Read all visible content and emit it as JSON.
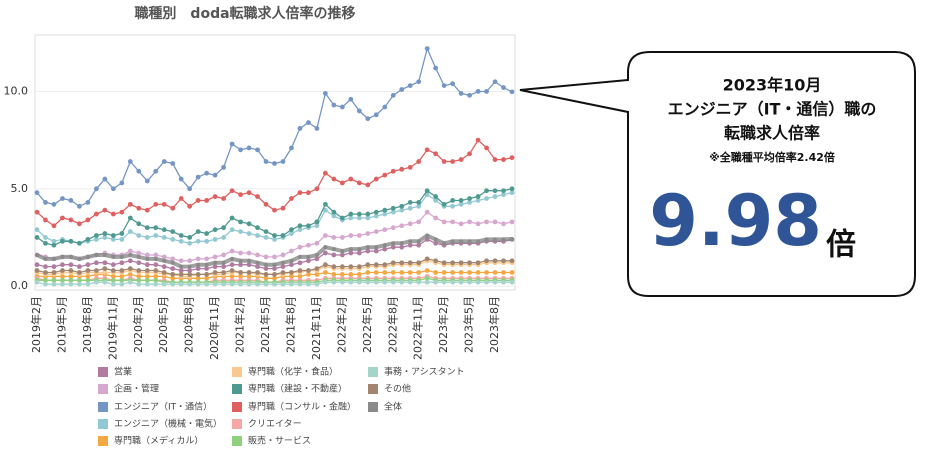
{
  "chart_data": {
    "type": "line",
    "title": "職種別　doda転職求人倍率の推移",
    "categories": [
      "2019年2月",
      null,
      null,
      "2019年5月",
      null,
      null,
      "2019年8月",
      null,
      null,
      "2019年11月",
      null,
      null,
      "2020年2月",
      null,
      null,
      "2020年5月",
      null,
      null,
      "2020年8月",
      null,
      null,
      "2020年11月",
      null,
      null,
      "2021年2月",
      null,
      null,
      "2021年5月",
      null,
      null,
      "2021年8月",
      null,
      null,
      "2021年11月",
      null,
      null,
      "2022年2月",
      null,
      null,
      "2022年5月",
      null,
      null,
      "2022年8月",
      null,
      null,
      "2022年11月",
      null,
      null,
      "2023年2月",
      null,
      null,
      "2023年5月",
      null,
      null,
      "2023年8月",
      null,
      null
    ],
    "ylim": [
      -0.2,
      12.9
    ],
    "yticks": [
      {
        "value": 0,
        "label": "0.0"
      },
      {
        "value": 5,
        "label": "5.0"
      },
      {
        "value": 10,
        "label": "10.0"
      }
    ],
    "grid": true,
    "series": [
      {
        "name": "営業",
        "color": "#b07aa1",
        "values": [
          1.1,
          1.0,
          1.0,
          1.1,
          1.1,
          1.0,
          1.1,
          1.2,
          1.2,
          1.1,
          1.2,
          1.3,
          1.2,
          1.1,
          1.1,
          1.0,
          0.9,
          0.8,
          0.8,
          0.9,
          0.9,
          1.0,
          1.0,
          1.1,
          1.1,
          1.1,
          1.0,
          0.9,
          0.9,
          1.0,
          1.1,
          1.2,
          1.3,
          1.4,
          1.7,
          1.6,
          1.6,
          1.7,
          1.7,
          1.8,
          1.8,
          1.9,
          2.0,
          2.0,
          2.1,
          2.1,
          2.4,
          2.2,
          2.1,
          2.2,
          2.2,
          2.2,
          2.2,
          2.3,
          2.3,
          2.3,
          2.4
        ]
      },
      {
        "name": "企画・管理",
        "color": "#d7a8cf",
        "values": [
          1.6,
          1.5,
          1.4,
          1.5,
          1.5,
          1.4,
          1.5,
          1.6,
          1.7,
          1.6,
          1.6,
          1.8,
          1.7,
          1.6,
          1.6,
          1.5,
          1.4,
          1.3,
          1.3,
          1.4,
          1.4,
          1.5,
          1.6,
          1.8,
          1.7,
          1.7,
          1.6,
          1.5,
          1.5,
          1.6,
          1.8,
          2.0,
          2.1,
          2.2,
          2.6,
          2.5,
          2.5,
          2.6,
          2.6,
          2.7,
          2.8,
          2.9,
          3.0,
          3.1,
          3.2,
          3.3,
          3.8,
          3.5,
          3.3,
          3.3,
          3.2,
          3.3,
          3.2,
          3.3,
          3.3,
          3.2,
          3.3
        ]
      },
      {
        "name": "エンジニア（IT・通信）",
        "color": "#7596c4",
        "values": [
          4.8,
          4.3,
          4.2,
          4.5,
          4.4,
          4.1,
          4.3,
          5.0,
          5.5,
          5.0,
          5.3,
          6.4,
          5.9,
          5.4,
          5.9,
          6.4,
          6.3,
          5.5,
          5.0,
          5.6,
          5.8,
          5.7,
          6.1,
          7.3,
          7.0,
          7.1,
          7.0,
          6.4,
          6.3,
          6.4,
          7.1,
          8.1,
          8.4,
          8.1,
          9.9,
          9.3,
          9.2,
          9.6,
          9.0,
          8.6,
          8.8,
          9.2,
          9.8,
          10.1,
          10.3,
          10.5,
          12.2,
          11.2,
          10.3,
          10.4,
          9.9,
          9.8,
          10.0,
          10.0,
          10.5,
          10.2,
          9.98
        ]
      },
      {
        "name": "エンジニア（機械・電気）",
        "color": "#93c9d3",
        "values": [
          2.9,
          2.5,
          2.3,
          2.4,
          2.3,
          2.2,
          2.3,
          2.4,
          2.5,
          2.4,
          2.4,
          2.8,
          2.6,
          2.5,
          2.6,
          2.5,
          2.4,
          2.3,
          2.2,
          2.3,
          2.3,
          2.4,
          2.5,
          2.9,
          2.8,
          2.7,
          2.6,
          2.5,
          2.4,
          2.5,
          2.7,
          2.9,
          3.0,
          3.1,
          3.9,
          3.6,
          3.4,
          3.5,
          3.5,
          3.5,
          3.6,
          3.7,
          3.8,
          3.9,
          4.0,
          4.1,
          4.7,
          4.4,
          4.1,
          4.1,
          4.2,
          4.3,
          4.4,
          4.5,
          4.6,
          4.7,
          4.8
        ]
      },
      {
        "name": "専門職（メディカル）",
        "color": "#f5a742",
        "values": [
          0.5,
          0.5,
          0.5,
          0.5,
          0.5,
          0.5,
          0.5,
          0.6,
          0.6,
          0.5,
          0.5,
          0.6,
          0.5,
          0.5,
          0.5,
          0.5,
          0.4,
          0.4,
          0.4,
          0.4,
          0.4,
          0.5,
          0.5,
          0.5,
          0.5,
          0.5,
          0.5,
          0.4,
          0.4,
          0.5,
          0.5,
          0.5,
          0.6,
          0.6,
          0.7,
          0.6,
          0.6,
          0.6,
          0.6,
          0.7,
          0.7,
          0.7,
          0.7,
          0.7,
          0.7,
          0.7,
          0.8,
          0.7,
          0.7,
          0.7,
          0.7,
          0.7,
          0.7,
          0.7,
          0.7,
          0.7,
          0.7
        ]
      },
      {
        "name": "専門職（化学・食品）",
        "color": "#f8c98e",
        "values": [
          0.7,
          0.6,
          0.6,
          0.7,
          0.7,
          0.6,
          0.7,
          0.7,
          0.7,
          0.7,
          0.7,
          0.8,
          0.7,
          0.7,
          0.7,
          0.6,
          0.6,
          0.5,
          0.5,
          0.6,
          0.6,
          0.6,
          0.6,
          0.7,
          0.7,
          0.7,
          0.6,
          0.6,
          0.6,
          0.6,
          0.7,
          0.7,
          0.8,
          0.8,
          1.0,
          0.9,
          0.9,
          0.9,
          0.9,
          1.0,
          1.0,
          1.0,
          1.1,
          1.1,
          1.1,
          1.1,
          1.3,
          1.2,
          1.1,
          1.1,
          1.1,
          1.1,
          1.1,
          1.2,
          1.2,
          1.2,
          1.2
        ]
      },
      {
        "name": "専門職（建設・不動産）",
        "color": "#4f9a90",
        "values": [
          2.5,
          2.2,
          2.1,
          2.3,
          2.3,
          2.2,
          2.4,
          2.6,
          2.7,
          2.6,
          2.7,
          3.5,
          3.2,
          3.0,
          3.0,
          2.9,
          2.8,
          2.6,
          2.5,
          2.8,
          2.7,
          2.9,
          3.0,
          3.5,
          3.3,
          3.2,
          3.0,
          2.8,
          2.6,
          2.6,
          2.9,
          3.1,
          3.1,
          3.3,
          4.2,
          3.8,
          3.5,
          3.7,
          3.7,
          3.7,
          3.8,
          3.9,
          4.0,
          4.1,
          4.3,
          4.3,
          4.9,
          4.6,
          4.2,
          4.4,
          4.4,
          4.5,
          4.6,
          4.9,
          4.9,
          4.9,
          5.0
        ]
      },
      {
        "name": "専門職（コンサル・金融）",
        "color": "#e06060",
        "values": [
          3.8,
          3.4,
          3.1,
          3.5,
          3.4,
          3.2,
          3.4,
          3.7,
          3.9,
          3.7,
          3.8,
          4.2,
          4.0,
          3.9,
          4.2,
          4.2,
          4.0,
          4.5,
          4.1,
          4.4,
          4.4,
          4.6,
          4.5,
          4.9,
          4.7,
          4.8,
          4.6,
          4.2,
          3.9,
          4.0,
          4.5,
          4.8,
          4.8,
          5.0,
          5.8,
          5.5,
          5.3,
          5.5,
          5.3,
          5.2,
          5.5,
          5.7,
          5.9,
          6.0,
          6.1,
          6.4,
          7.0,
          6.8,
          6.4,
          6.4,
          6.5,
          6.8,
          7.5,
          7.1,
          6.5,
          6.5,
          6.6
        ]
      },
      {
        "name": "クリエイター",
        "color": "#f4a7a5",
        "values": [
          0.4,
          0.3,
          0.3,
          0.3,
          0.3,
          0.3,
          0.3,
          0.4,
          0.4,
          0.3,
          0.3,
          0.4,
          0.3,
          0.3,
          0.3,
          0.3,
          0.2,
          0.2,
          0.2,
          0.2,
          0.2,
          0.3,
          0.3,
          0.3,
          0.3,
          0.3,
          0.3,
          0.2,
          0.2,
          0.3,
          0.3,
          0.3,
          0.3,
          0.3,
          0.4,
          0.4,
          0.4,
          0.4,
          0.4,
          0.4,
          0.4,
          0.4,
          0.4,
          0.4,
          0.4,
          0.4,
          0.5,
          0.4,
          0.4,
          0.4,
          0.4,
          0.4,
          0.4,
          0.4,
          0.4,
          0.4,
          0.4
        ]
      },
      {
        "name": "販売・サービス",
        "color": "#8fd07f",
        "values": [
          0.3,
          0.3,
          0.3,
          0.3,
          0.3,
          0.3,
          0.3,
          0.3,
          0.3,
          0.3,
          0.3,
          0.3,
          0.3,
          0.3,
          0.3,
          0.2,
          0.2,
          0.2,
          0.2,
          0.2,
          0.2,
          0.2,
          0.2,
          0.2,
          0.2,
          0.2,
          0.2,
          0.2,
          0.2,
          0.2,
          0.2,
          0.2,
          0.2,
          0.2,
          0.3,
          0.3,
          0.3,
          0.3,
          0.3,
          0.3,
          0.3,
          0.3,
          0.3,
          0.3,
          0.3,
          0.3,
          0.4,
          0.3,
          0.3,
          0.3,
          0.3,
          0.3,
          0.3,
          0.3,
          0.3,
          0.3,
          0.3
        ]
      },
      {
        "name": "事務・アシスタント",
        "color": "#a5d4cb",
        "values": [
          0.2,
          0.1,
          0.1,
          0.1,
          0.1,
          0.1,
          0.1,
          0.2,
          0.2,
          0.1,
          0.1,
          0.2,
          0.1,
          0.1,
          0.1,
          0.1,
          0.1,
          0.1,
          0.1,
          0.1,
          0.1,
          0.1,
          0.1,
          0.1,
          0.1,
          0.1,
          0.1,
          0.1,
          0.1,
          0.1,
          0.1,
          0.1,
          0.1,
          0.1,
          0.2,
          0.2,
          0.2,
          0.2,
          0.2,
          0.2,
          0.2,
          0.2,
          0.2,
          0.2,
          0.2,
          0.2,
          0.2,
          0.2,
          0.2,
          0.2,
          0.2,
          0.2,
          0.2,
          0.2,
          0.2,
          0.2,
          0.2
        ]
      },
      {
        "name": "その他",
        "color": "#a3846f",
        "values": [
          0.8,
          0.7,
          0.7,
          0.8,
          0.8,
          0.7,
          0.8,
          0.8,
          0.9,
          0.8,
          0.8,
          0.9,
          0.8,
          0.8,
          0.8,
          0.7,
          0.6,
          0.6,
          0.6,
          0.6,
          0.6,
          0.7,
          0.7,
          0.8,
          0.7,
          0.7,
          0.7,
          0.6,
          0.6,
          0.7,
          0.7,
          0.8,
          0.8,
          0.9,
          1.1,
          1.0,
          1.0,
          1.0,
          1.0,
          1.1,
          1.1,
          1.1,
          1.2,
          1.2,
          1.2,
          1.2,
          1.4,
          1.3,
          1.2,
          1.2,
          1.2,
          1.2,
          1.2,
          1.3,
          1.3,
          1.3,
          1.3
        ]
      },
      {
        "name": "全体",
        "color": "#8a8a8a",
        "values": [
          1.6,
          1.4,
          1.4,
          1.5,
          1.5,
          1.4,
          1.5,
          1.6,
          1.6,
          1.5,
          1.5,
          1.6,
          1.5,
          1.4,
          1.4,
          1.3,
          1.2,
          1.0,
          1.0,
          1.1,
          1.1,
          1.2,
          1.2,
          1.4,
          1.3,
          1.3,
          1.2,
          1.1,
          1.1,
          1.2,
          1.3,
          1.5,
          1.5,
          1.6,
          2.0,
          1.9,
          1.8,
          1.9,
          1.9,
          2.0,
          2.0,
          2.1,
          2.2,
          2.2,
          2.3,
          2.3,
          2.6,
          2.4,
          2.2,
          2.3,
          2.3,
          2.3,
          2.3,
          2.4,
          2.4,
          2.4,
          2.42
        ]
      }
    ]
  },
  "callout": {
    "date": "2023年10月",
    "line1": "エンジニア（IT・通信）職の",
    "line2": "転職求人倍率",
    "note": "※全職種平均倍率2.42倍",
    "unit": "倍"
  }
}
